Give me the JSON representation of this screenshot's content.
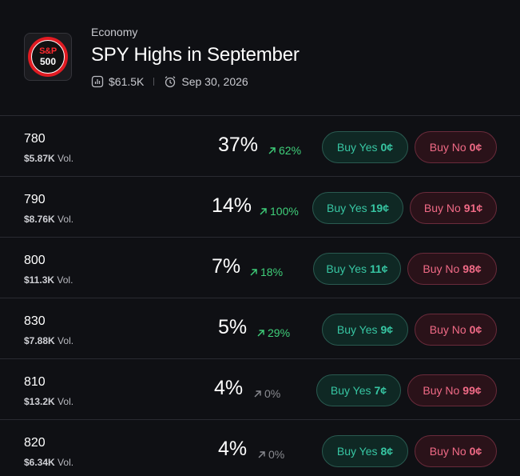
{
  "header": {
    "category": "Economy",
    "title": "SPY Highs in September",
    "logo": {
      "line1": "S&P",
      "line2": "500"
    },
    "volume": "$61.5K",
    "date": "Sep 30, 2026",
    "icons": {
      "volume": "chart-bars-icon",
      "date": "alarm-clock-icon"
    }
  },
  "colors": {
    "background": "#0f1014",
    "up": "#3fcf7a",
    "flat": "#8a8b91",
    "yes": "#37c6a3",
    "no": "#f06a86",
    "logo_red": "#e11b22"
  },
  "rows": [
    {
      "label": "780",
      "vol": "$5.87K",
      "vol_suffix": "Vol.",
      "pct": "37%",
      "change": "62%",
      "trend": "up",
      "yes_label": "Buy Yes",
      "yes_price": "0¢",
      "no_label": "Buy No",
      "no_price": "0¢"
    },
    {
      "label": "790",
      "vol": "$8.76K",
      "vol_suffix": "Vol.",
      "pct": "14%",
      "change": "100%",
      "trend": "up",
      "yes_label": "Buy Yes",
      "yes_price": "19¢",
      "no_label": "Buy No",
      "no_price": "91¢"
    },
    {
      "label": "800",
      "vol": "$11.3K",
      "vol_suffix": "Vol.",
      "pct": "7%",
      "change": "18%",
      "trend": "up",
      "yes_label": "Buy Yes",
      "yes_price": "11¢",
      "no_label": "Buy No",
      "no_price": "98¢"
    },
    {
      "label": "830",
      "vol": "$7.88K",
      "vol_suffix": "Vol.",
      "pct": "5%",
      "change": "29%",
      "trend": "up",
      "yes_label": "Buy Yes",
      "yes_price": "9¢",
      "no_label": "Buy No",
      "no_price": "0¢"
    },
    {
      "label": "810",
      "vol": "$13.2K",
      "vol_suffix": "Vol.",
      "pct": "4%",
      "change": "0%",
      "trend": "flat",
      "yes_label": "Buy Yes",
      "yes_price": "7¢",
      "no_label": "Buy No",
      "no_price": "99¢"
    },
    {
      "label": "820",
      "vol": "$6.34K",
      "vol_suffix": "Vol.",
      "pct": "4%",
      "change": "0%",
      "trend": "flat",
      "yes_label": "Buy Yes",
      "yes_price": "8¢",
      "no_label": "Buy No",
      "no_price": "0¢"
    }
  ]
}
